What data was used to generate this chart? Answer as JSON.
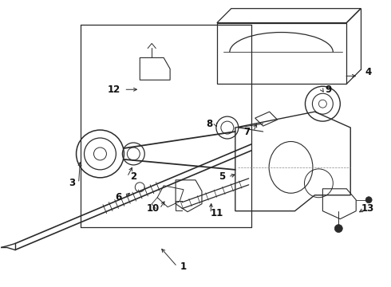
{
  "bg_color": "#ffffff",
  "line_color": "#2a2a2a",
  "text_color": "#111111",
  "figsize": [
    4.9,
    3.6
  ],
  "dpi": 100
}
